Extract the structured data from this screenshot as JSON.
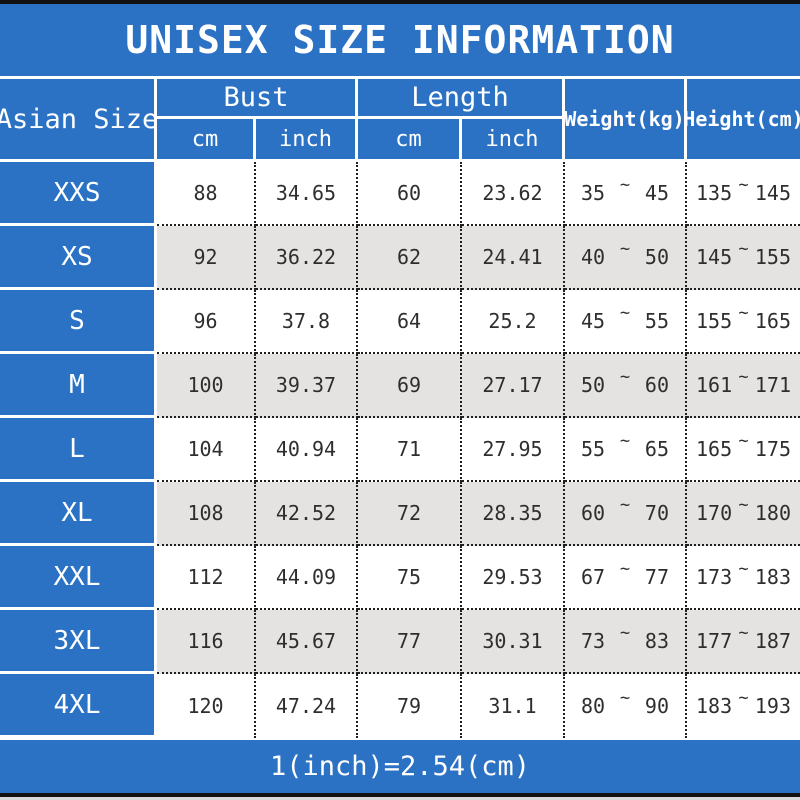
{
  "title": "UNISEX SIZE INFORMATION",
  "footer": "1(inch)=2.54(cm)",
  "colors": {
    "band_blue": "#2b72c4",
    "alt_row_gray": "#e4e3e1",
    "border_black": "#111111",
    "text_dark": "#2e2e2e",
    "text_white": "#ffffff"
  },
  "table": {
    "tilde": "~",
    "header": {
      "asian_size": "Asian Size",
      "bust": "Bust",
      "length": "Length",
      "weight": "Weight(kg)",
      "height": "Height(cm)",
      "cm": "cm",
      "inch": "inch"
    },
    "rows": [
      {
        "size": "XXS",
        "bust_cm": "88",
        "bust_inch": "34.65",
        "length_cm": "60",
        "length_inch": "23.62",
        "weight_min": "35",
        "weight_max": "45",
        "height_min": "135",
        "height_max": "145"
      },
      {
        "size": "XS",
        "bust_cm": "92",
        "bust_inch": "36.22",
        "length_cm": "62",
        "length_inch": "24.41",
        "weight_min": "40",
        "weight_max": "50",
        "height_min": "145",
        "height_max": "155"
      },
      {
        "size": "S",
        "bust_cm": "96",
        "bust_inch": "37.8",
        "length_cm": "64",
        "length_inch": "25.2",
        "weight_min": "45",
        "weight_max": "55",
        "height_min": "155",
        "height_max": "165"
      },
      {
        "size": "M",
        "bust_cm": "100",
        "bust_inch": "39.37",
        "length_cm": "69",
        "length_inch": "27.17",
        "weight_min": "50",
        "weight_max": "60",
        "height_min": "161",
        "height_max": "171"
      },
      {
        "size": "L",
        "bust_cm": "104",
        "bust_inch": "40.94",
        "length_cm": "71",
        "length_inch": "27.95",
        "weight_min": "55",
        "weight_max": "65",
        "height_min": "165",
        "height_max": "175"
      },
      {
        "size": "XL",
        "bust_cm": "108",
        "bust_inch": "42.52",
        "length_cm": "72",
        "length_inch": "28.35",
        "weight_min": "60",
        "weight_max": "70",
        "height_min": "170",
        "height_max": "180"
      },
      {
        "size": "XXL",
        "bust_cm": "112",
        "bust_inch": "44.09",
        "length_cm": "75",
        "length_inch": "29.53",
        "weight_min": "67",
        "weight_max": "77",
        "height_min": "173",
        "height_max": "183"
      },
      {
        "size": "3XL",
        "bust_cm": "116",
        "bust_inch": "45.67",
        "length_cm": "77",
        "length_inch": "30.31",
        "weight_min": "73",
        "weight_max": "83",
        "height_min": "177",
        "height_max": "187"
      },
      {
        "size": "4XL",
        "bust_cm": "120",
        "bust_inch": "47.24",
        "length_cm": "79",
        "length_inch": "31.1",
        "weight_min": "80",
        "weight_max": "90",
        "height_min": "183",
        "height_max": "193"
      }
    ]
  },
  "chart_data": {
    "type": "table",
    "title": "UNISEX SIZE INFORMATION",
    "columns": [
      "Asian Size",
      "Bust cm",
      "Bust inch",
      "Length cm",
      "Length inch",
      "Weight(kg)",
      "Height(cm)"
    ],
    "rows": [
      [
        "XXS",
        88,
        34.65,
        60,
        23.62,
        "35~45",
        "135~145"
      ],
      [
        "XS",
        92,
        36.22,
        62,
        24.41,
        "40~50",
        "145~155"
      ],
      [
        "S",
        96,
        37.8,
        64,
        25.2,
        "45~55",
        "155~165"
      ],
      [
        "M",
        100,
        39.37,
        69,
        27.17,
        "50~60",
        "161~171"
      ],
      [
        "L",
        104,
        40.94,
        71,
        27.95,
        "55~65",
        "165~175"
      ],
      [
        "XL",
        108,
        42.52,
        72,
        28.35,
        "60~70",
        "170~180"
      ],
      [
        "XXL",
        112,
        44.09,
        75,
        29.53,
        "67~77",
        "173~183"
      ],
      [
        "3XL",
        116,
        45.67,
        77,
        30.31,
        "73~83",
        "177~187"
      ],
      [
        "4XL",
        120,
        47.24,
        79,
        31.1,
        "80~90",
        "183~193"
      ]
    ],
    "footnote": "1(inch)=2.54(cm)"
  }
}
